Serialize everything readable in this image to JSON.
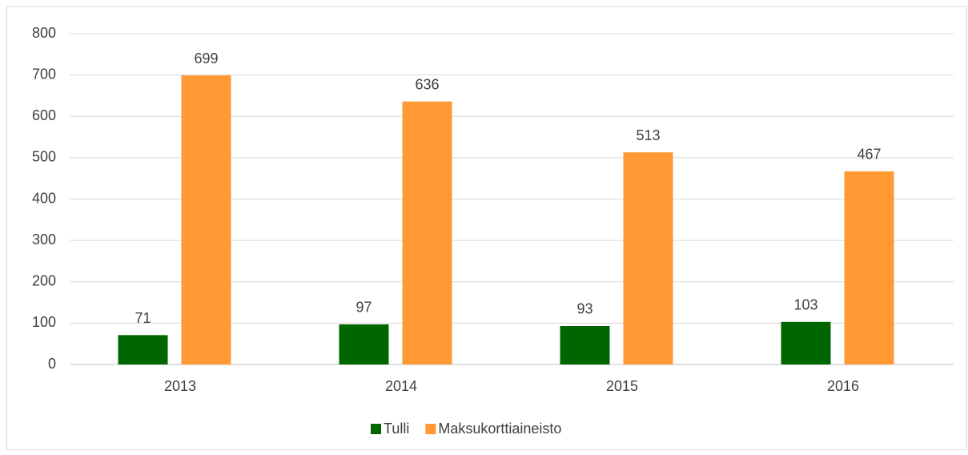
{
  "chart_data": {
    "type": "bar",
    "categories": [
      "2013",
      "2014",
      "2015",
      "2016"
    ],
    "series": [
      {
        "name": "Tulli",
        "color": "#006600",
        "values": [
          71,
          97,
          93,
          103
        ]
      },
      {
        "name": "Maksukorttiaineisto",
        "color": "#ff9933",
        "values": [
          699,
          636,
          513,
          467
        ]
      }
    ],
    "ylim": [
      0,
      800
    ],
    "yticks": [
      0,
      100,
      200,
      300,
      400,
      500,
      600,
      700,
      800
    ],
    "grid": true,
    "legend": "bottom",
    "data_labels": true
  }
}
